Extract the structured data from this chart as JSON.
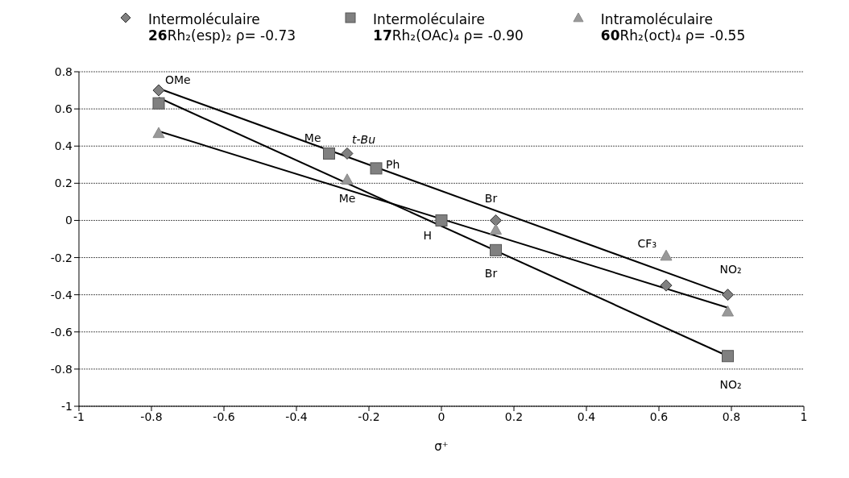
{
  "chart_data": {
    "type": "scatter",
    "xlabel": "σ⁺",
    "xlim": [
      -1,
      1
    ],
    "xticks": [
      -1,
      -0.8,
      -0.6,
      -0.4,
      -0.2,
      0,
      0.2,
      0.4,
      0.6,
      0.8,
      1
    ],
    "ylim": [
      -1,
      0.8
    ],
    "yticks": [
      -1,
      -0.8,
      -0.6,
      -0.4,
      -0.2,
      0,
      0.2,
      0.4,
      0.6,
      0.8
    ],
    "grid": "y",
    "legend": "top",
    "series": [
      {
        "name": "Intermoléculaire\n26Rh₂(esp)₂ ρ= -0.73",
        "marker": "diamond",
        "color": "#808080",
        "x": [
          -0.78,
          -0.26,
          0.15,
          0.62,
          0.79
        ],
        "values": [
          0.7,
          0.36,
          0.0,
          -0.35,
          -0.4
        ]
      },
      {
        "name": "Intermoléculaire\n17Rh₂(OAc)₄ ρ= -0.90",
        "marker": "square",
        "color": "#808080",
        "x": [
          -0.78,
          -0.31,
          -0.18,
          0,
          0.15,
          0.79
        ],
        "values": [
          0.63,
          0.36,
          0.28,
          0,
          -0.16,
          -0.73
        ]
      },
      {
        "name": "Intramoléculaire\n60Rh₂(oct)₄ ρ= -0.55",
        "marker": "triangle",
        "color": "#999999",
        "x": [
          -0.78,
          -0.26,
          0.15,
          0.62,
          0.79
        ],
        "values": [
          0.47,
          0.22,
          -0.05,
          -0.19,
          -0.49
        ]
      },
      {
        "type": "line",
        "color": "#000000",
        "x": [
          -0.78,
          0.79
        ],
        "values": [
          0.71,
          -0.4
        ]
      },
      {
        "type": "line",
        "color": "#000000",
        "x": [
          -0.78,
          0.79
        ],
        "values": [
          0.66,
          -0.73
        ]
      },
      {
        "type": "line",
        "color": "#000000",
        "x": [
          -0.78,
          0.79
        ],
        "values": [
          0.48,
          -0.47
        ]
      }
    ],
    "annotations": [
      {
        "text": "OMe",
        "x": -0.78,
        "y": 0.7
      },
      {
        "text": "Me",
        "x": -0.31,
        "y": 0.36
      },
      {
        "text": "t-Bu",
        "x": -0.26,
        "y": 0.36
      },
      {
        "text": "Ph",
        "x": -0.18,
        "y": 0.28
      },
      {
        "text": "Me",
        "x": -0.26,
        "y": 0.22
      },
      {
        "text": "H",
        "x": 0,
        "y": 0
      },
      {
        "text": "Br",
        "x": 0.15,
        "y": 0
      },
      {
        "text": "Br",
        "x": 0.15,
        "y": -0.16
      },
      {
        "text": "CF₃",
        "x": 0.62,
        "y": -0.19
      },
      {
        "text": "NO₂",
        "x": 0.79,
        "y": -0.4
      },
      {
        "text": "NO₂",
        "x": 0.79,
        "y": -0.73
      }
    ]
  }
}
